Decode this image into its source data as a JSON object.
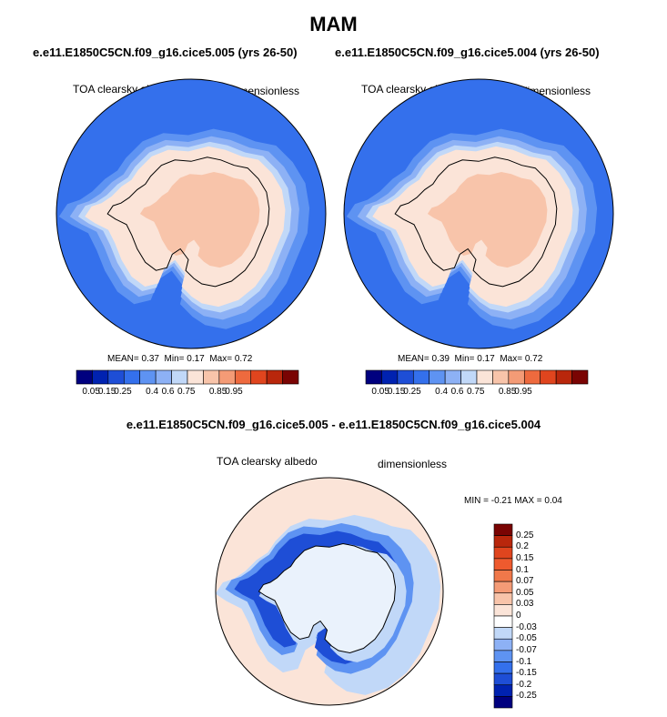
{
  "page": {
    "title": "MAM",
    "top_left_case": "e.e11.E1850C5CN.f09_g16.cice5.005 (yrs 26-50)",
    "top_right_case": "e.e11.E1850C5CN.f09_g16.cice5.004 (yrs 26-50)",
    "diff_title": "e.e11.E1850C5CN.f09_g16.cice5.005 - e.e11.E1850C5CN.f09_g16.cice5.004"
  },
  "chart_data": [
    {
      "type": "heatmap",
      "projection": "polar-stereographic-south",
      "variable": "TOA clearsky albedo",
      "units": "dimensionless",
      "stats": {
        "mean_label": "MEAN=",
        "mean": "0.37",
        "min_label": "Min=",
        "min": "0.17",
        "max_label": "Max=",
        "max": "0.72"
      },
      "colorbar": {
        "orientation": "horizontal",
        "colors": [
          "#00007f",
          "#0022b0",
          "#1e4ed6",
          "#3470ec",
          "#5e93f2",
          "#8db1f5",
          "#c1d8f8",
          "#fbe4d8",
          "#f8c4aa",
          "#f49b76",
          "#ee6a3e",
          "#e0451e",
          "#b9270c",
          "#7a0403"
        ],
        "tick_labels": [
          "0.05",
          "0.15",
          "0.25",
          "0.4",
          "0.6",
          "0.75",
          "0.85",
          "0.95"
        ]
      }
    },
    {
      "type": "heatmap",
      "projection": "polar-stereographic-south",
      "variable": "TOA clearsky albedo",
      "units": "dimensionless",
      "stats": {
        "mean_label": "MEAN=",
        "mean": "0.39",
        "min_label": "Min=",
        "min": "0.17",
        "max_label": "Max=",
        "max": "0.72"
      },
      "colorbar": {
        "orientation": "horizontal",
        "colors": [
          "#00007f",
          "#0022b0",
          "#1e4ed6",
          "#3470ec",
          "#5e93f2",
          "#8db1f5",
          "#c1d8f8",
          "#fbe4d8",
          "#f8c4aa",
          "#f49b76",
          "#ee6a3e",
          "#e0451e",
          "#b9270c",
          "#7a0403"
        ],
        "tick_labels": [
          "0.05",
          "0.15",
          "0.25",
          "0.4",
          "0.6",
          "0.75",
          "0.85",
          "0.95"
        ]
      }
    },
    {
      "type": "heatmap",
      "projection": "polar-stereographic-south",
      "variable": "TOA clearsky albedo",
      "units": "dimensionless",
      "stats": {
        "min_label": "MIN =",
        "min": "-0.21",
        "max_label": "MAX =",
        "max": "0.04"
      },
      "colorbar": {
        "orientation": "vertical",
        "colors_top_to_bottom": [
          "#7a0403",
          "#b9270c",
          "#e0451e",
          "#ee5a2e",
          "#f0784a",
          "#f49b76",
          "#f8c4aa",
          "#fbe4d8",
          "#ffffff",
          "#c1d8f8",
          "#8db1f5",
          "#5e93f2",
          "#3470ec",
          "#1e4ed6",
          "#0022b0",
          "#00007f"
        ],
        "tick_labels_top_to_bottom": [
          "0.25",
          "0.2",
          "0.15",
          "0.1",
          "0.07",
          "0.05",
          "0.03",
          "0",
          "-0.03",
          "-0.05",
          "-0.07",
          "-0.1",
          "-0.15",
          "-0.2",
          "-0.25"
        ]
      }
    }
  ]
}
